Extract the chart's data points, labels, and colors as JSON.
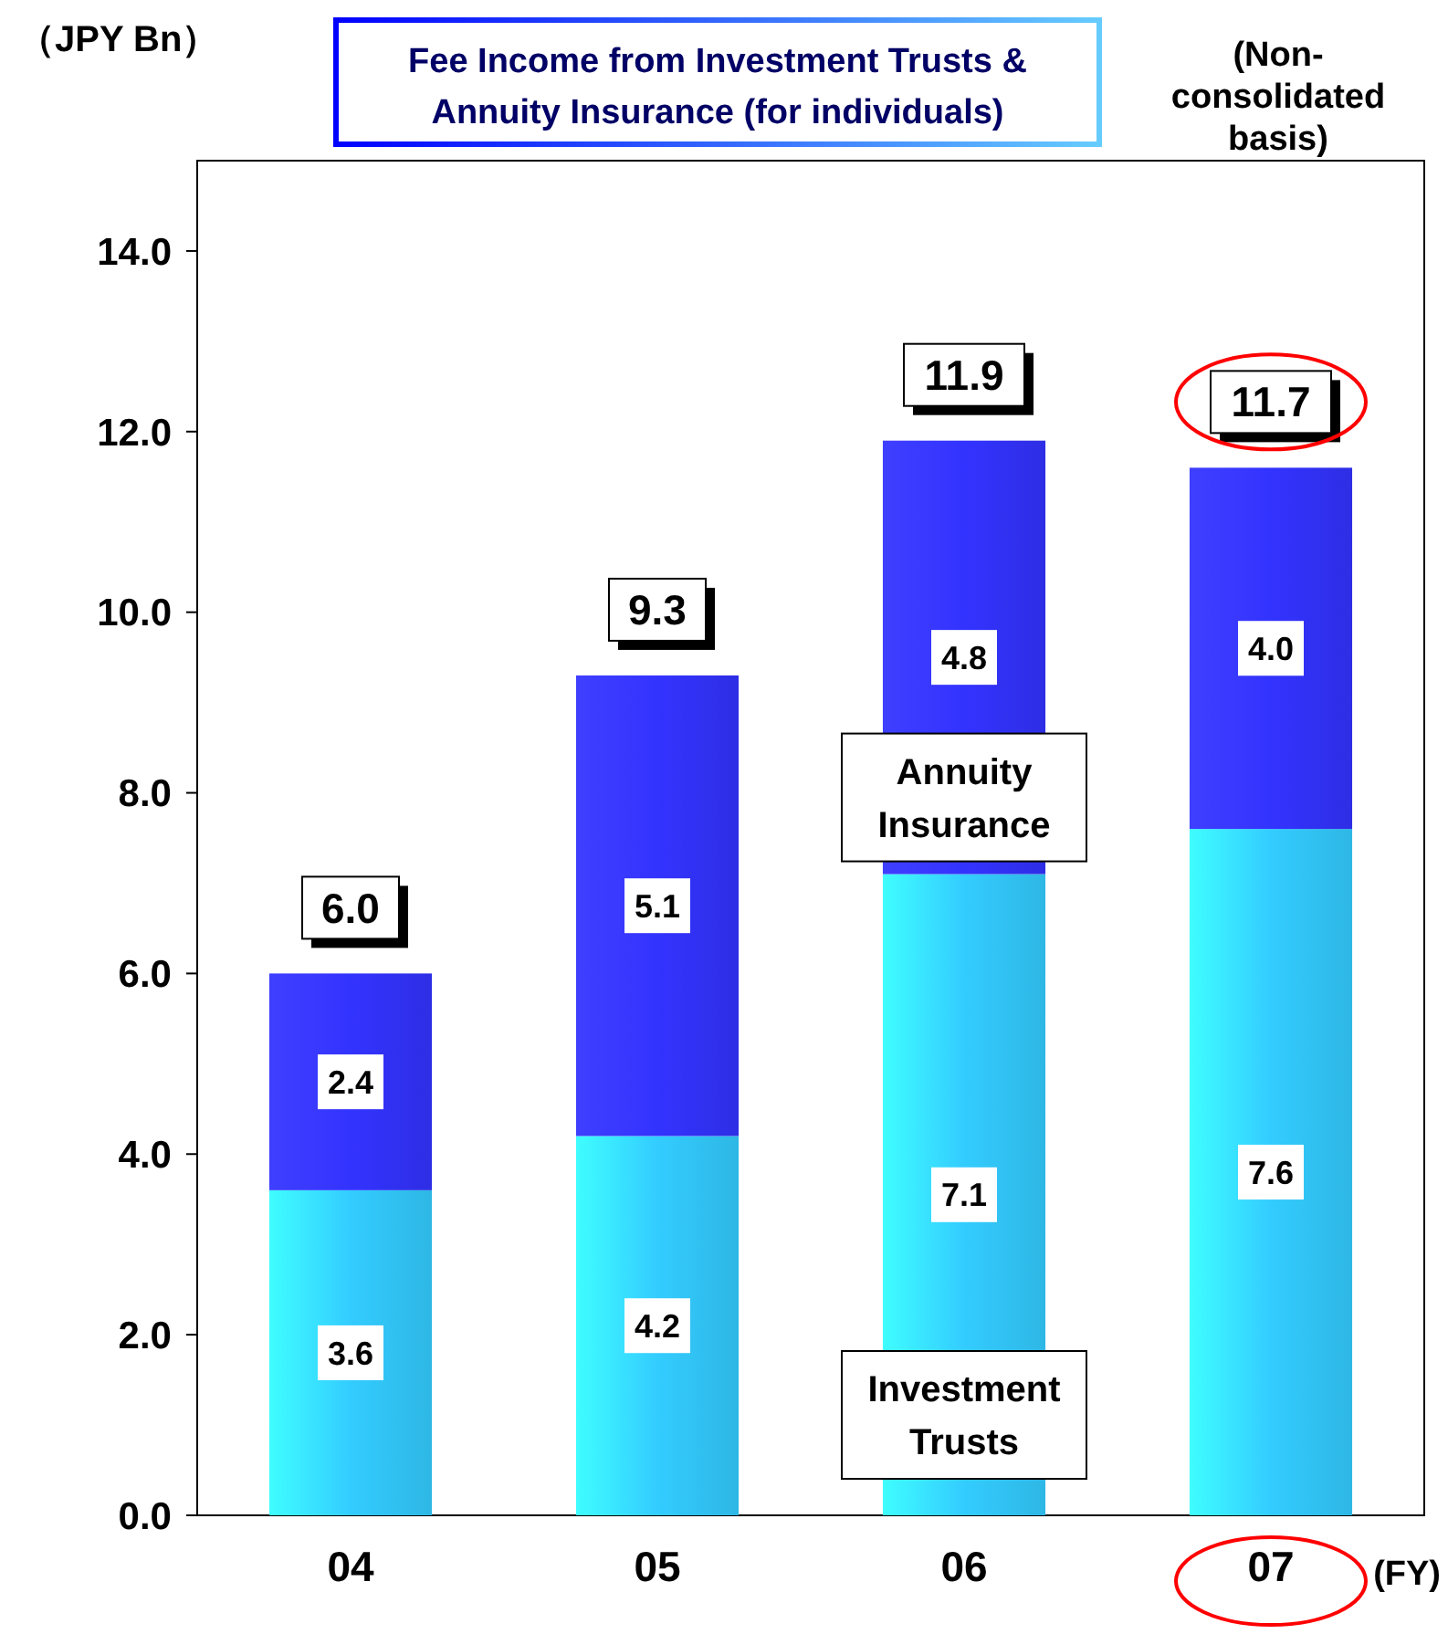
{
  "chart_data": {
    "type": "bar",
    "title": "Fee Income from Investment Trusts & Annuity Insurance (for individuals)",
    "ylabel": "（JPY Bn）",
    "xlabel": "(FY)",
    "annotations": [
      "(Non-consolidated basis)"
    ],
    "categories": [
      "04",
      "05",
      "06",
      "07"
    ],
    "stacked": true,
    "series": [
      {
        "name": "Investment Trusts",
        "color": "#33ccff",
        "values": [
          3.6,
          4.2,
          7.1,
          7.6
        ],
        "value_labels": [
          "3.6",
          "4.2",
          "7.1",
          "7.6"
        ]
      },
      {
        "name": "Annuity Insurance",
        "color": "#3333ff",
        "values": [
          2.4,
          5.1,
          4.8,
          4.0
        ],
        "value_labels": [
          "2.4",
          "5.1",
          "4.8",
          "4.0"
        ]
      }
    ],
    "totals": [
      "6.0",
      "9.3",
      "11.9",
      "11.7"
    ],
    "ylim": [
      0,
      15
    ],
    "yticks": [
      {
        "value": 0,
        "label": "0.0"
      },
      {
        "value": 2,
        "label": "2.0"
      },
      {
        "value": 4,
        "label": "4.0"
      },
      {
        "value": 6,
        "label": "6.0"
      },
      {
        "value": 8,
        "label": "8.0"
      },
      {
        "value": 10,
        "label": "10.0"
      },
      {
        "value": 12,
        "label": "12.0"
      },
      {
        "value": 14,
        "label": "14.0"
      }
    ]
  }
}
